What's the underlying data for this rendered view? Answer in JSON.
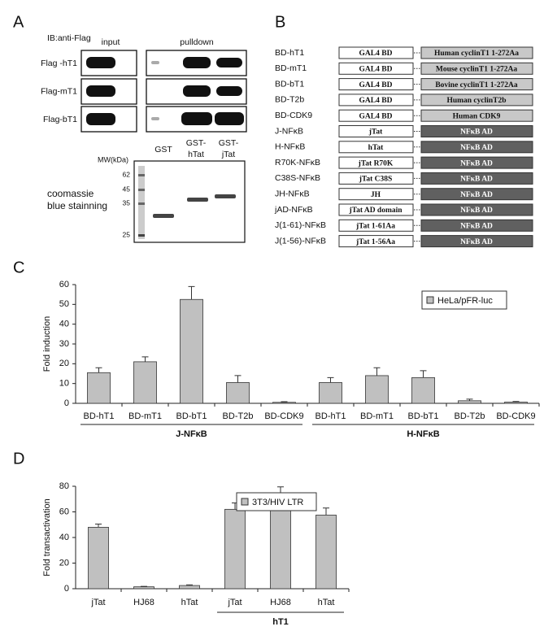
{
  "panel_a": {
    "letter": "A",
    "antibody": "IB:anti-Flag",
    "input": "input",
    "pulldown": "pulldown",
    "rows": [
      "Flag -hT1",
      "Flag-mT1",
      "Flag-bT1"
    ],
    "lanes": [
      [
        "GST"
      ],
      [
        "GST-",
        "hTat"
      ],
      [
        "GST-",
        "jTat"
      ]
    ],
    "mw_title": "MW(kDa)",
    "mw_marks": [
      62,
      45,
      35,
      25
    ],
    "stain": [
      "coomassie",
      "blue stainning"
    ]
  },
  "panel_b": {
    "letter": "B",
    "constructs": [
      {
        "name": "BD-hT1",
        "domain": "GAL4 BD",
        "fusion": "Human cyclinT1 1-272Aa",
        "color": "#c8c8c8"
      },
      {
        "name": "BD-mT1",
        "domain": "GAL4 BD",
        "fusion": "Mouse cyclinT1 1-272Aa",
        "color": "#c8c8c8"
      },
      {
        "name": "BD-bT1",
        "domain": "GAL4 BD",
        "fusion": "Bovine cyclinT1 1-272Aa",
        "color": "#c8c8c8"
      },
      {
        "name": "BD-T2b",
        "domain": "GAL4 BD",
        "fusion": "Human cyclinT2b",
        "color": "#c8c8c8"
      },
      {
        "name": "BD-CDK9",
        "domain": "GAL4 BD",
        "fusion": "Human CDK9",
        "color": "#c8c8c8"
      },
      {
        "name": "J-NFκB",
        "domain": "jTat",
        "fusion": "NFκB AD",
        "color": "#606060"
      },
      {
        "name": "H-NFκB",
        "domain": "hTat",
        "fusion": "NFκB AD",
        "color": "#606060"
      },
      {
        "name": "R70K-NFκB",
        "domain": "jTat R70K",
        "fusion": "NFκB AD",
        "color": "#606060"
      },
      {
        "name": "C38S-NFκB",
        "domain": "jTat C38S",
        "fusion": "NFκB AD",
        "color": "#606060"
      },
      {
        "name": "JH-NFκB",
        "domain": "JH",
        "fusion": "NFκB AD",
        "color": "#606060"
      },
      {
        "name": "jAD-NFκB",
        "domain": "jTat AD domain",
        "fusion": "NFκB AD",
        "color": "#606060"
      },
      {
        "name": "J(1-61)-NFκB",
        "domain": "jTat 1-61Aa",
        "fusion": "NFκB AD",
        "color": "#606060"
      },
      {
        "name": "J(1-56)-NFκB",
        "domain": "jTat 1-56Aa",
        "fusion": "NFκB AD",
        "color": "#606060"
      }
    ]
  },
  "chart_data": [
    {
      "type": "bar",
      "letter": "C",
      "ylabel": "Fold induction",
      "categories": [
        "BD-hT1",
        "BD-mT1",
        "BD-bT1",
        "BD-T2b",
        "BD-CDK9",
        "BD-hT1",
        "BD-mT1",
        "BD-bT1",
        "BD-T2b",
        "BD-CDK9"
      ],
      "group": [
        "J-NFκB",
        "J-NFκB",
        "J-NFκB",
        "J-NFκB",
        "J-NFκB",
        "H-NFκB",
        "H-NFκB",
        "H-NFκB",
        "H-NFκB",
        "H-NFκB"
      ],
      "series": [
        {
          "name": "HeLa/pFR-luc",
          "color": "#c0c0c0",
          "values": [
            15.5,
            21,
            52.5,
            10.5,
            0.5,
            10.5,
            14,
            13,
            1.3,
            0.6
          ],
          "errors": [
            2.5,
            2.5,
            6.5,
            3.5,
            0.3,
            2.5,
            4,
            3.5,
            0.8,
            0.3
          ]
        }
      ],
      "ylim": [
        0,
        60
      ],
      "yticks": [
        0,
        10,
        20,
        30,
        40,
        50,
        60
      ],
      "legend": "upper right"
    },
    {
      "type": "bar",
      "letter": "D",
      "ylabel": "Fold transactivation",
      "categories": [
        "jTat",
        "HJ68",
        "hTat",
        "jTat",
        "HJ68",
        "hTat"
      ],
      "group": [
        null,
        null,
        null,
        "hT1",
        "hT1",
        "hT1"
      ],
      "series": [
        {
          "name": "3T3/HIV LTR",
          "color": "#c0c0c0",
          "values": [
            48,
            1.5,
            2.5,
            62,
            72.5,
            57.5
          ],
          "errors": [
            2.5,
            0.3,
            0.5,
            5,
            7,
            5.5
          ]
        }
      ],
      "ylim": [
        0,
        80
      ],
      "yticks": [
        0,
        20,
        40,
        60,
        80
      ],
      "legend": "upper right"
    }
  ]
}
